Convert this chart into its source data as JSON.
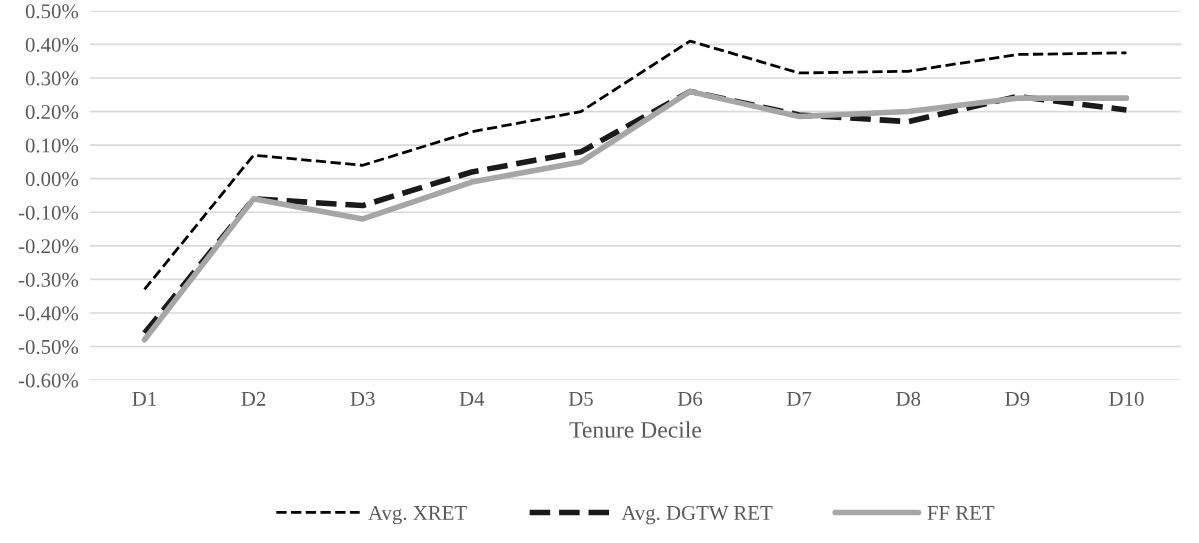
{
  "chart_data": {
    "type": "line",
    "xlabel": "Tenure Decile",
    "categories": [
      "D1",
      "D2",
      "D3",
      "D4",
      "D5",
      "D6",
      "D7",
      "D8",
      "D9",
      "D10"
    ],
    "series": [
      {
        "name": "Avg. XRET",
        "color": "#000000",
        "line_style": "dashed",
        "values": [
          -0.33,
          0.07,
          0.04,
          0.14,
          0.2,
          0.41,
          0.315,
          0.32,
          0.37,
          0.375
        ]
      },
      {
        "name": "Avg. DGTW RET",
        "color": "#1a1a1a",
        "line_style": "dashed",
        "values": [
          -0.46,
          -0.06,
          -0.08,
          0.02,
          0.08,
          0.26,
          0.19,
          0.17,
          0.245,
          0.205
        ]
      },
      {
        "name": "FF RET",
        "color": "#a6a6a6",
        "line_style": "solid",
        "values": [
          -0.48,
          -0.06,
          -0.12,
          -0.01,
          0.05,
          0.26,
          0.185,
          0.2,
          0.24,
          0.24
        ]
      }
    ],
    "ylim": [
      -0.6,
      0.5
    ],
    "yticks": [
      {
        "value": -0.6,
        "label": "-0.60%"
      },
      {
        "value": -0.5,
        "label": "-0.50%"
      },
      {
        "value": -0.4,
        "label": "-0.40%"
      },
      {
        "value": -0.3,
        "label": "-0.30%"
      },
      {
        "value": -0.2,
        "label": "-0.20%"
      },
      {
        "value": -0.1,
        "label": "-0.10%"
      },
      {
        "value": 0,
        "label": "0.00%"
      },
      {
        "value": 0.1,
        "label": "0.10%"
      },
      {
        "value": 0.2,
        "label": "0.20%"
      },
      {
        "value": 0.3,
        "label": "0.30%"
      },
      {
        "value": 0.4,
        "label": "0.40%"
      },
      {
        "value": 0.5,
        "label": "0.50%"
      }
    ],
    "grid": "y",
    "legend": "bottom",
    "marker": "none"
  }
}
